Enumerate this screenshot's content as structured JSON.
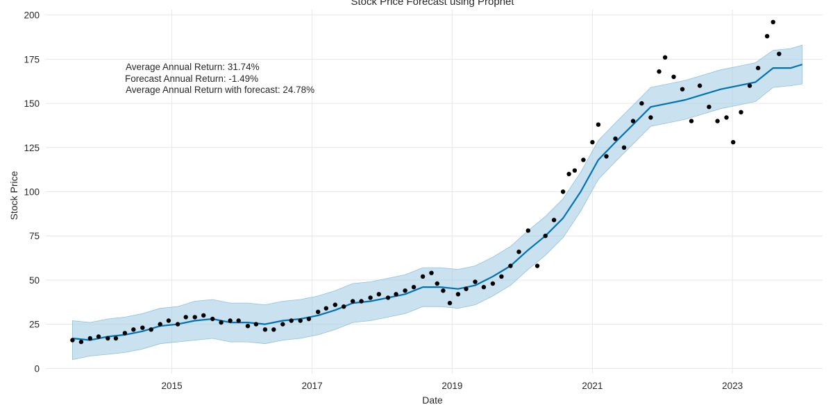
{
  "chart_data": {
    "type": "line",
    "title": "Stock Price Forecast using Prophet",
    "xlabel": "Date",
    "ylabel": "Stock Price",
    "x_ticks": [
      "2015",
      "2017",
      "2019",
      "2021",
      "2023"
    ],
    "y_ticks": [
      0,
      25,
      50,
      75,
      100,
      125,
      150,
      175,
      200
    ],
    "xlim": [
      "2013-03-15",
      "2024-04-15"
    ],
    "ylim": [
      -3,
      203
    ],
    "grid": true,
    "annotations": [
      "Average Annual Return: 31.74%",
      "Forecast Annual Return: -1.49%",
      "Average Annual Return with forecast: 24.78%"
    ],
    "colors": {
      "actual": "#000000",
      "forecast": "#0072B2",
      "interval": "#a6cde6",
      "grid": "#e6e6e6"
    },
    "series": [
      {
        "kind": "scatter",
        "x": [
          "2013-08-01",
          "2013-09-15",
          "2013-11-01",
          "2013-12-15",
          "2014-02-01",
          "2014-03-15",
          "2014-05-01",
          "2014-06-15",
          "2014-08-01",
          "2014-09-15",
          "2014-11-01",
          "2014-12-15",
          "2015-02-01",
          "2015-03-15",
          "2015-05-01",
          "2015-06-15",
          "2015-08-01",
          "2015-09-15",
          "2015-11-01",
          "2015-12-15",
          "2016-02-01",
          "2016-03-15",
          "2016-05-01",
          "2016-06-15",
          "2016-08-01",
          "2016-09-15",
          "2016-11-01",
          "2016-12-15",
          "2017-02-01",
          "2017-03-15",
          "2017-05-01",
          "2017-06-15",
          "2017-08-01",
          "2017-09-15",
          "2017-11-01",
          "2017-12-15",
          "2018-02-01",
          "2018-03-15",
          "2018-05-01",
          "2018-06-15",
          "2018-08-01",
          "2018-09-15",
          "2018-10-15",
          "2018-11-15",
          "2018-12-20",
          "2019-02-01",
          "2019-03-15",
          "2019-05-01",
          "2019-06-15",
          "2019-08-01",
          "2019-09-15",
          "2019-11-01",
          "2019-12-15",
          "2020-02-01",
          "2020-03-20",
          "2020-05-01",
          "2020-06-15",
          "2020-08-01",
          "2020-09-01",
          "2020-10-01",
          "2020-11-15",
          "2021-01-01",
          "2021-02-01",
          "2021-03-15",
          "2021-05-01",
          "2021-06-15",
          "2021-08-01",
          "2021-09-15",
          "2021-11-01",
          "2021-12-15",
          "2022-01-15",
          "2022-03-01",
          "2022-04-15",
          "2022-06-01",
          "2022-07-15",
          "2022-09-01",
          "2022-10-15",
          "2022-12-01",
          "2023-01-05",
          "2023-02-15",
          "2023-04-01",
          "2023-05-15",
          "2023-07-01",
          "2023-08-01",
          "2023-09-01"
        ],
        "y": [
          16,
          15,
          17,
          18,
          17,
          17,
          20,
          22,
          23,
          22,
          25,
          27,
          25,
          29,
          29,
          30,
          28,
          26,
          27,
          27,
          24,
          25,
          22,
          22,
          25,
          27,
          27,
          28,
          32,
          34,
          36,
          35,
          38,
          38,
          40,
          42,
          40,
          42,
          44,
          46,
          52,
          54,
          48,
          44,
          37,
          42,
          45,
          49,
          46,
          48,
          52,
          58,
          66,
          78,
          58,
          75,
          84,
          100,
          110,
          112,
          118,
          128,
          138,
          120,
          130,
          125,
          140,
          150,
          142,
          168,
          176,
          165,
          158,
          140,
          160,
          148,
          140,
          142,
          128,
          145,
          160,
          170,
          188,
          196,
          178
        ]
      },
      {
        "kind": "line",
        "x": [
          "2013-08-01",
          "2013-11-01",
          "2014-02-01",
          "2014-05-01",
          "2014-08-01",
          "2014-11-01",
          "2015-02-01",
          "2015-05-01",
          "2015-08-01",
          "2015-11-01",
          "2016-02-01",
          "2016-05-01",
          "2016-08-01",
          "2016-11-01",
          "2017-02-01",
          "2017-05-01",
          "2017-08-01",
          "2017-11-01",
          "2018-02-01",
          "2018-05-01",
          "2018-08-01",
          "2018-11-01",
          "2019-02-01",
          "2019-05-01",
          "2019-08-01",
          "2019-11-01",
          "2020-02-01",
          "2020-05-01",
          "2020-08-01",
          "2020-11-01",
          "2021-02-01",
          "2021-05-01",
          "2021-08-01",
          "2021-11-01",
          "2022-02-01",
          "2022-05-01",
          "2022-08-01",
          "2022-11-01",
          "2023-02-01",
          "2023-05-01",
          "2023-08-01",
          "2023-11-01",
          "2023-12-31"
        ],
        "y": [
          17,
          16,
          18,
          19,
          21,
          24,
          25,
          27,
          28,
          26,
          26,
          25,
          27,
          28,
          30,
          33,
          37,
          38,
          40,
          42,
          46,
          46,
          45,
          47,
          52,
          58,
          67,
          75,
          85,
          100,
          118,
          128,
          138,
          148,
          150,
          152,
          155,
          158,
          160,
          162,
          170,
          170,
          172
        ]
      },
      {
        "kind": "interval",
        "x": [
          "2013-08-01",
          "2013-11-01",
          "2014-02-01",
          "2014-05-01",
          "2014-08-01",
          "2014-11-01",
          "2015-02-01",
          "2015-05-01",
          "2015-08-01",
          "2015-11-01",
          "2016-02-01",
          "2016-05-01",
          "2016-08-01",
          "2016-11-01",
          "2017-02-01",
          "2017-05-01",
          "2017-08-01",
          "2017-11-01",
          "2018-02-01",
          "2018-05-01",
          "2018-08-01",
          "2018-11-01",
          "2019-02-01",
          "2019-05-01",
          "2019-08-01",
          "2019-11-01",
          "2020-02-01",
          "2020-05-01",
          "2020-08-01",
          "2020-11-01",
          "2021-02-01",
          "2021-05-01",
          "2021-08-01",
          "2021-11-01",
          "2022-02-01",
          "2022-05-01",
          "2022-08-01",
          "2022-11-01",
          "2023-02-01",
          "2023-05-01",
          "2023-08-01",
          "2023-11-01",
          "2023-12-31"
        ],
        "lower": [
          5,
          7,
          8,
          9,
          11,
          14,
          15,
          16,
          17,
          15,
          15,
          14,
          16,
          17,
          19,
          22,
          26,
          27,
          29,
          31,
          35,
          35,
          34,
          36,
          41,
          47,
          56,
          64,
          74,
          89,
          107,
          117,
          127,
          137,
          139,
          141,
          144,
          147,
          149,
          151,
          159,
          160,
          161
        ],
        "upper": [
          27,
          26,
          28,
          29,
          31,
          34,
          35,
          38,
          39,
          37,
          37,
          36,
          38,
          39,
          41,
          44,
          48,
          49,
          51,
          53,
          57,
          57,
          56,
          58,
          63,
          69,
          78,
          86,
          96,
          111,
          129,
          139,
          149,
          159,
          161,
          163,
          166,
          169,
          171,
          173,
          180,
          181,
          183
        ]
      }
    ]
  }
}
